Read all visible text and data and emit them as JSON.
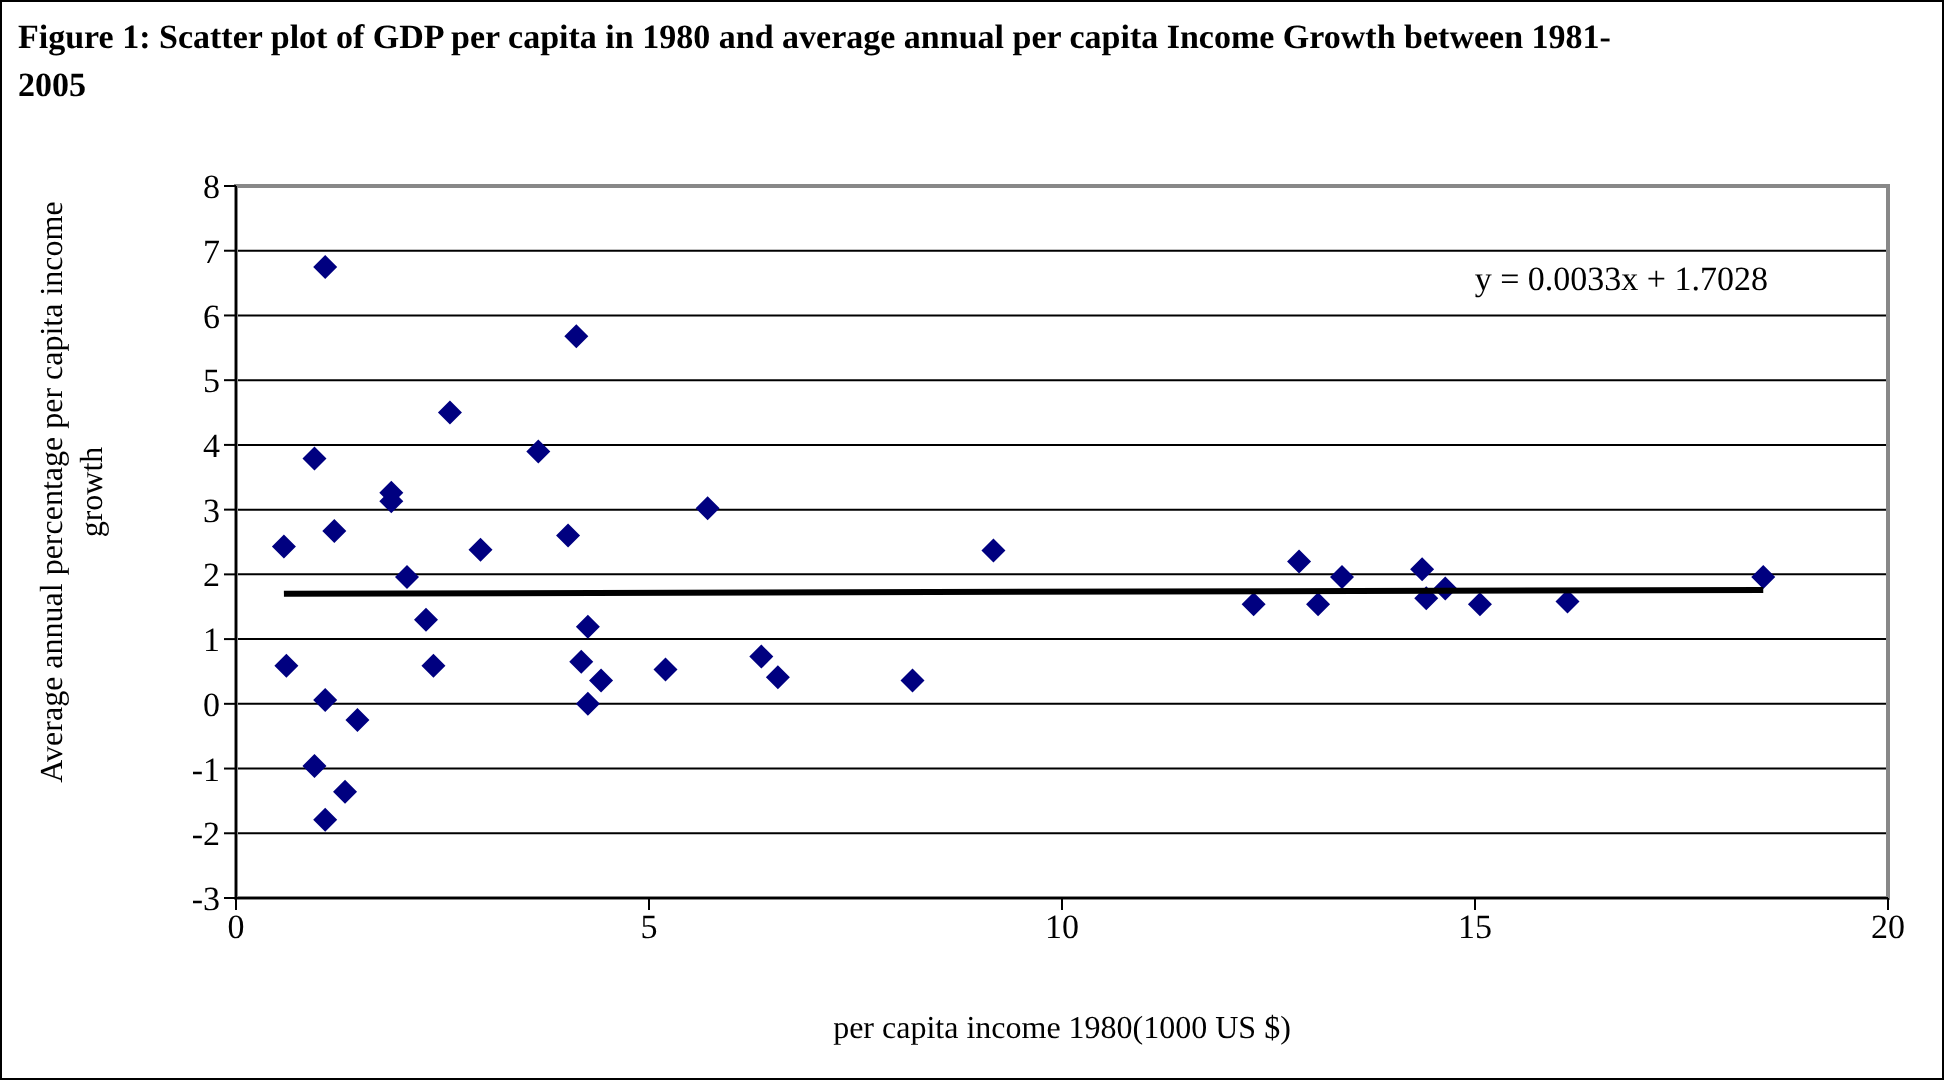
{
  "chart_data": {
    "type": "scatter",
    "title": "Figure 1:  Scatter plot of GDP per capita in 1980 and average annual per capita Income Growth between 1981-2005",
    "xlabel": "per capita income 1980(1000 US $)",
    "ylabel": "Average annual percentage per capita income growth",
    "annotations": [
      "y = 0.0033x + 1.7028"
    ],
    "series": [
      {
        "marker": "diamond",
        "color": "#000080",
        "x": [
          1.08,
          4.12,
          2.59,
          3.66,
          0.95,
          1.88,
          1.88,
          5.71,
          1.19,
          4.02,
          0.58,
          2.96,
          2.07,
          2.3,
          4.26,
          0.61,
          2.39,
          4.18,
          6.36,
          5.2,
          4.42,
          6.56,
          1.08,
          4.26,
          1.47,
          0.95,
          1.32,
          1.08,
          8.19,
          9.17,
          12.32,
          12.87,
          13.1,
          13.39,
          14.36,
          14.41,
          14.64,
          15.06,
          16.12,
          18.49
        ],
        "values": [
          6.75,
          5.68,
          4.5,
          3.9,
          3.79,
          3.26,
          3.13,
          3.02,
          2.67,
          2.6,
          2.43,
          2.38,
          1.96,
          1.3,
          1.19,
          0.59,
          0.59,
          0.65,
          0.73,
          0.53,
          0.36,
          0.41,
          0.06,
          0.0,
          -0.25,
          -0.96,
          -1.36,
          -1.79,
          0.36,
          2.37,
          1.54,
          2.2,
          1.54,
          1.96,
          2.08,
          1.63,
          1.78,
          1.54,
          1.58,
          1.96
        ]
      },
      {
        "type": "line",
        "marker": "none",
        "color": "#000000",
        "x": [
          0.58,
          18.49
        ],
        "values": [
          1.7,
          1.76
        ]
      }
    ],
    "xlim": [
      0,
      20
    ],
    "xticks": [
      0,
      5,
      10,
      15,
      20
    ],
    "ylim": [
      -3,
      8
    ],
    "yticks": [
      -3,
      -2,
      -1,
      0,
      1,
      2,
      3,
      4,
      5,
      6,
      7,
      8
    ],
    "grid": "y",
    "legend": false
  }
}
